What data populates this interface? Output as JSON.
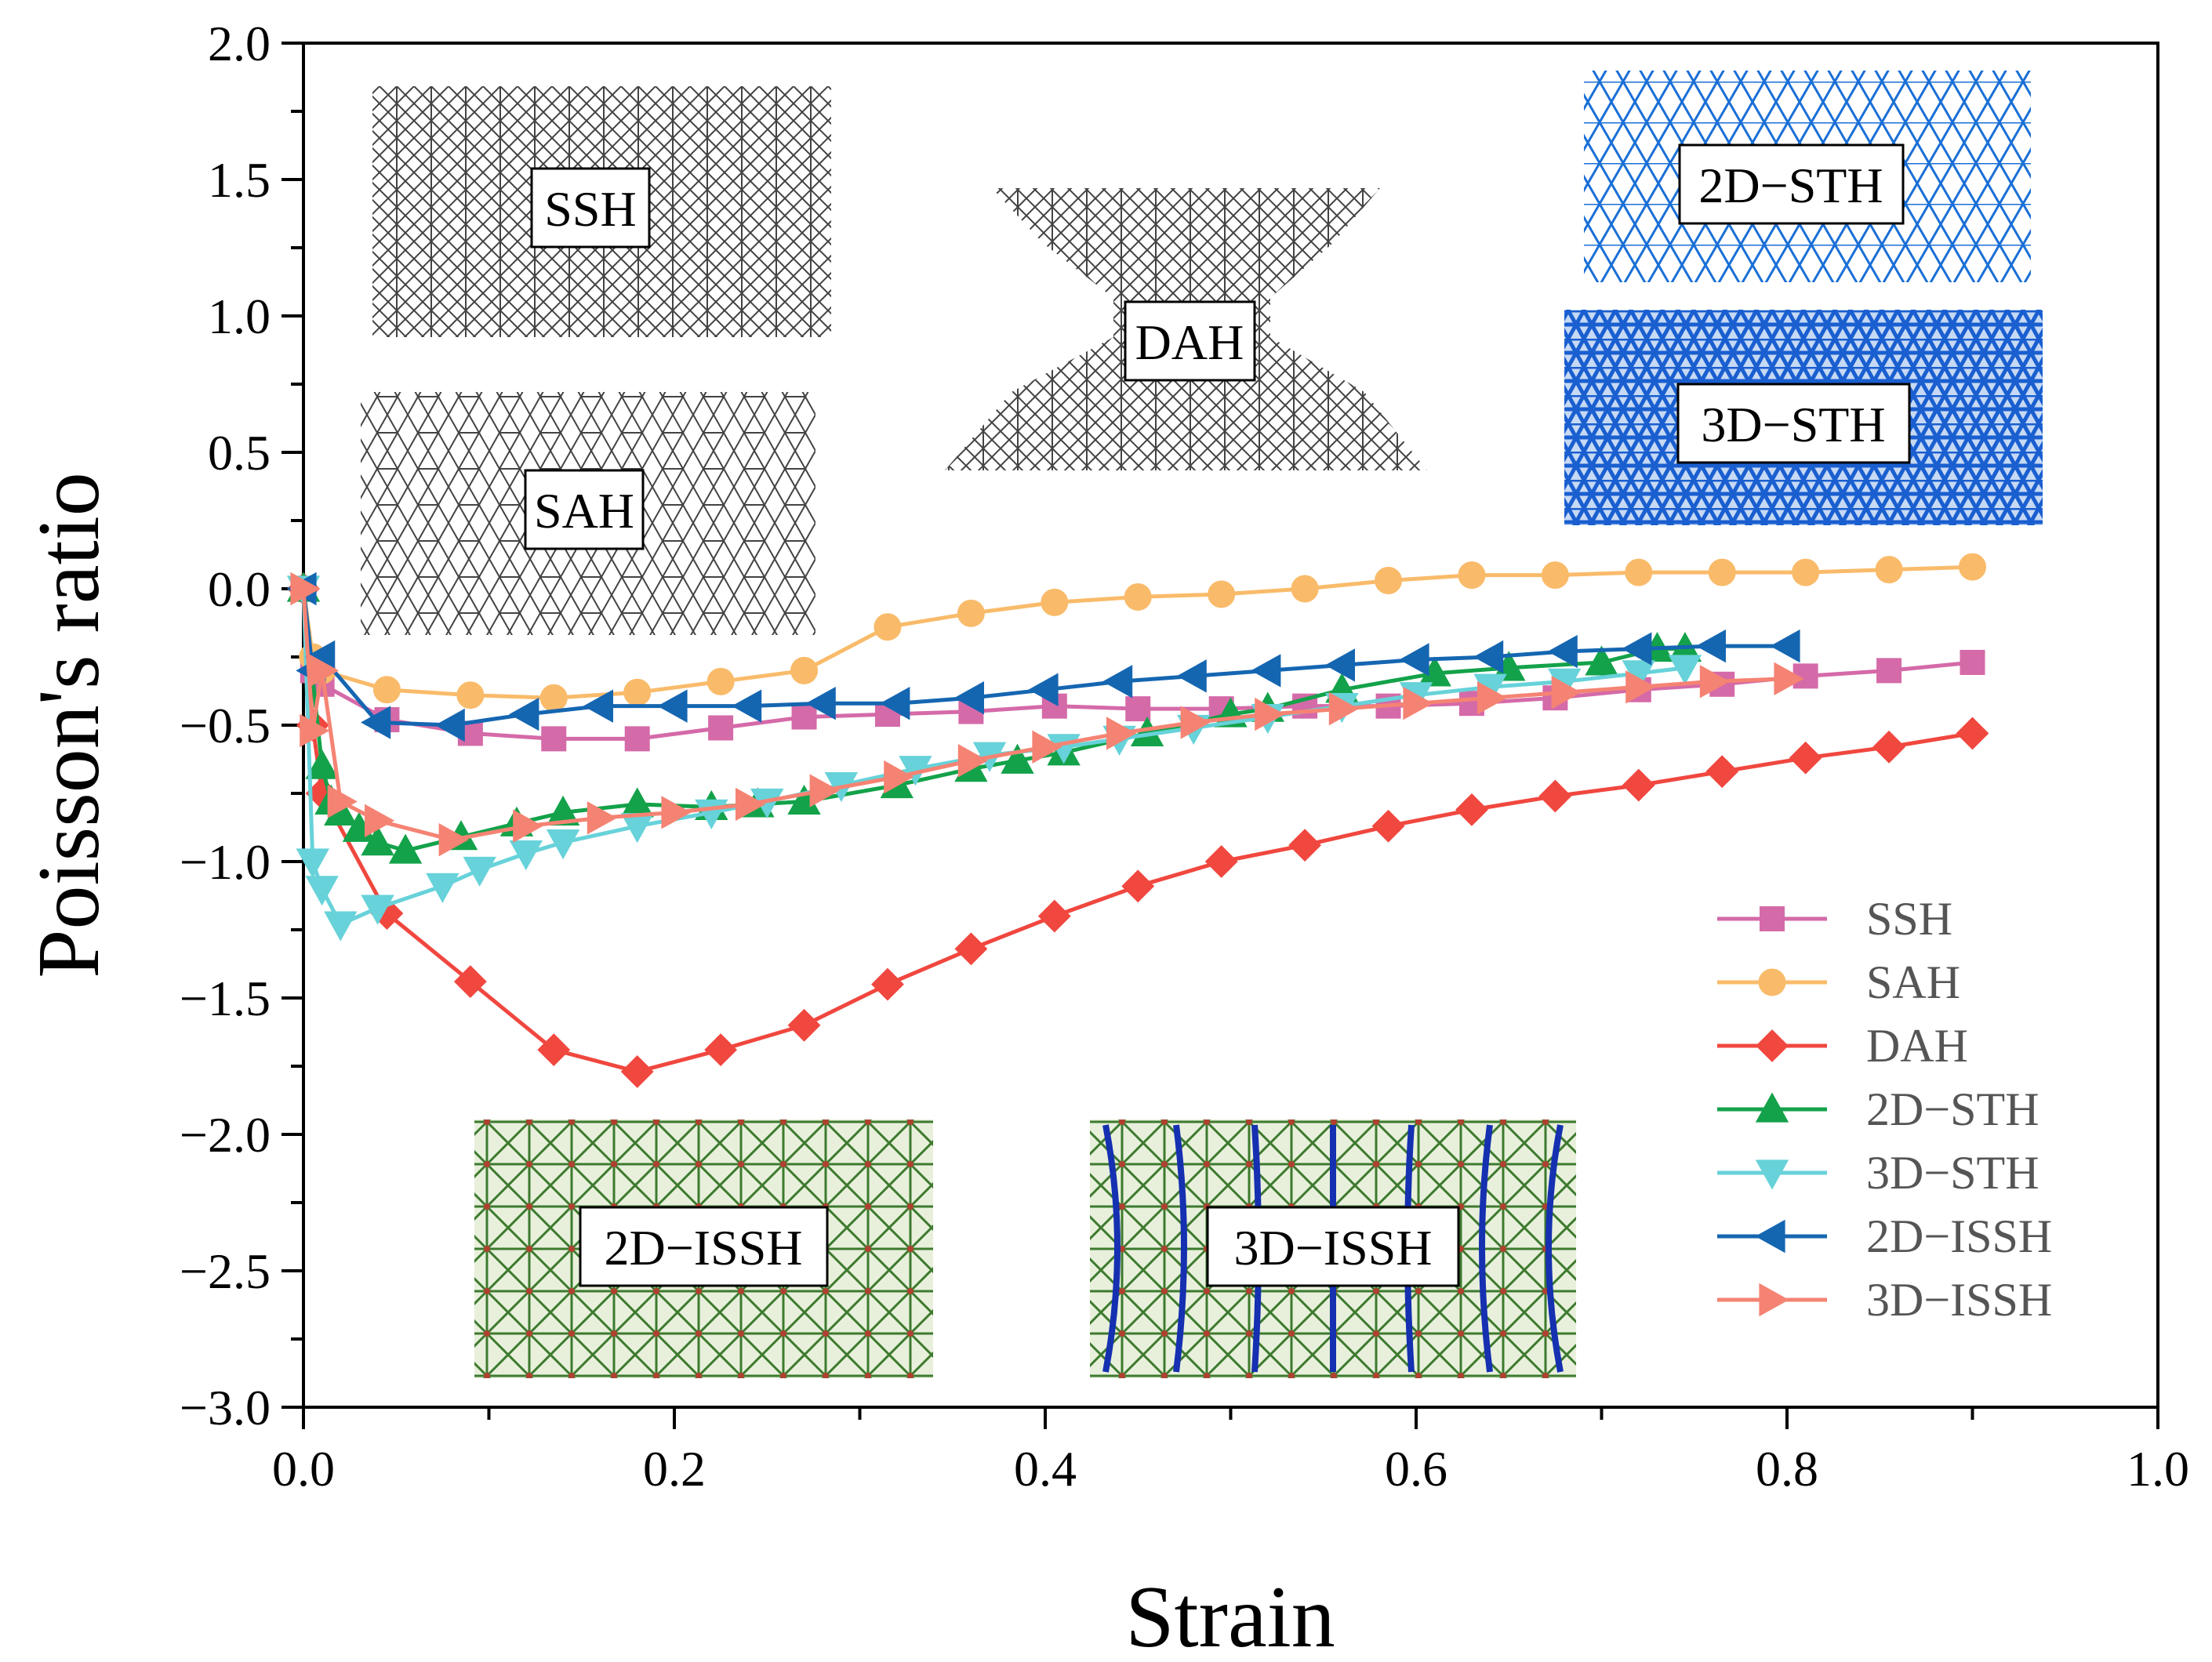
{
  "chart_data": {
    "type": "line",
    "xlabel": "Strain",
    "ylabel": "Poisson's ratio",
    "xlim": [
      0.0,
      1.0
    ],
    "ylim": [
      -3.0,
      2.0
    ],
    "xticks": [
      "0.0",
      "0.2",
      "0.4",
      "0.6",
      "0.8",
      "1.0"
    ],
    "yticks": [
      "2.0",
      "1.5",
      "1.0",
      "0.5",
      "0.0",
      "-0.5",
      "-1.0",
      "-1.5",
      "-2.0",
      "-2.5",
      "-3.0"
    ],
    "legend_position": "bottom-right",
    "series": [
      {
        "name": "SSH",
        "color": "#d56aa8",
        "marker": "square",
        "x": [
          0.0,
          0.005,
          0.01,
          0.045,
          0.09,
          0.135,
          0.18,
          0.225,
          0.27,
          0.315,
          0.36,
          0.405,
          0.45,
          0.495,
          0.54,
          0.585,
          0.63,
          0.675,
          0.72,
          0.765,
          0.81,
          0.855,
          0.9
        ],
        "y": [
          0.0,
          -0.3,
          -0.35,
          -0.48,
          -0.53,
          -0.55,
          -0.55,
          -0.51,
          -0.47,
          -0.46,
          -0.45,
          -0.43,
          -0.44,
          -0.44,
          -0.43,
          -0.43,
          -0.42,
          -0.4,
          -0.37,
          -0.35,
          -0.32,
          -0.3,
          -0.27
        ]
      },
      {
        "name": "SAH",
        "color": "#f9bb6a",
        "marker": "circle",
        "x": [
          0.0,
          0.005,
          0.01,
          0.045,
          0.09,
          0.135,
          0.18,
          0.225,
          0.27,
          0.315,
          0.36,
          0.405,
          0.45,
          0.495,
          0.54,
          0.585,
          0.63,
          0.675,
          0.72,
          0.765,
          0.81,
          0.855,
          0.9
        ],
        "y": [
          0.0,
          -0.25,
          -0.3,
          -0.37,
          -0.39,
          -0.4,
          -0.38,
          -0.34,
          -0.3,
          -0.14,
          -0.09,
          -0.05,
          -0.03,
          -0.02,
          0.0,
          0.03,
          0.05,
          0.05,
          0.06,
          0.06,
          0.06,
          0.07,
          0.08
        ]
      },
      {
        "name": "DAH",
        "color": "#f0473f",
        "marker": "diamond",
        "x": [
          0.0,
          0.005,
          0.01,
          0.045,
          0.09,
          0.135,
          0.18,
          0.225,
          0.27,
          0.315,
          0.36,
          0.405,
          0.45,
          0.495,
          0.54,
          0.585,
          0.63,
          0.675,
          0.72,
          0.765,
          0.81,
          0.855,
          0.9
        ],
        "y": [
          0.0,
          -0.5,
          -0.75,
          -1.19,
          -1.44,
          -1.69,
          -1.77,
          -1.69,
          -1.6,
          -1.45,
          -1.32,
          -1.2,
          -1.09,
          -1.0,
          -0.94,
          -0.87,
          -0.81,
          -0.76,
          -0.72,
          -0.67,
          -0.62,
          -0.58,
          -0.53
        ]
      },
      {
        "name": "2D-STH",
        "color": "#13a24a",
        "marker": "triangle-up",
        "x": [
          0.0,
          0.01,
          0.015,
          0.02,
          0.03,
          0.04,
          0.055,
          0.085,
          0.115,
          0.14,
          0.18,
          0.22,
          0.245,
          0.27,
          0.32,
          0.36,
          0.385,
          0.41,
          0.455,
          0.5,
          0.52,
          0.56,
          0.61,
          0.65,
          0.7,
          0.73,
          0.745
        ],
        "y": [
          0.0,
          -0.65,
          -0.78,
          -0.82,
          -0.88,
          -0.93,
          -0.96,
          -0.91,
          -0.86,
          -0.82,
          -0.79,
          -0.8,
          -0.79,
          -0.78,
          -0.72,
          -0.66,
          -0.63,
          -0.6,
          -0.53,
          -0.46,
          -0.44,
          -0.37,
          -0.31,
          -0.29,
          -0.27,
          -0.22,
          -0.22
        ]
      },
      {
        "name": "3D-STH",
        "color": "#67d2d9",
        "marker": "triangle-down",
        "x": [
          0.0,
          0.005,
          0.01,
          0.02,
          0.04,
          0.075,
          0.095,
          0.12,
          0.14,
          0.18,
          0.22,
          0.25,
          0.29,
          0.33,
          0.37,
          0.41,
          0.44,
          0.48,
          0.52,
          0.56,
          0.6,
          0.64,
          0.68,
          0.72,
          0.745
        ],
        "y": [
          0.0,
          -1.0,
          -1.1,
          -1.23,
          -1.17,
          -1.09,
          -1.03,
          -0.97,
          -0.93,
          -0.87,
          -0.82,
          -0.78,
          -0.72,
          -0.66,
          -0.61,
          -0.58,
          -0.55,
          -0.51,
          -0.47,
          -0.43,
          -0.39,
          -0.36,
          -0.34,
          -0.31,
          -0.29
        ]
      },
      {
        "name": "2D-ISSH",
        "color": "#1566b1",
        "marker": "triangle-left",
        "x": [
          0.0,
          0.005,
          0.01,
          0.04,
          0.08,
          0.12,
          0.16,
          0.2,
          0.24,
          0.28,
          0.32,
          0.36,
          0.4,
          0.44,
          0.48,
          0.52,
          0.56,
          0.6,
          0.64,
          0.68,
          0.72,
          0.76,
          0.8
        ],
        "y": [
          0.0,
          -0.3,
          -0.25,
          -0.49,
          -0.5,
          -0.46,
          -0.43,
          -0.43,
          -0.43,
          -0.42,
          -0.42,
          -0.4,
          -0.37,
          -0.34,
          -0.32,
          -0.3,
          -0.28,
          -0.26,
          -0.25,
          -0.23,
          -0.22,
          -0.21,
          -0.21
        ]
      },
      {
        "name": "3D-ISSH",
        "color": "#f58373",
        "marker": "triangle-right",
        "x": [
          0.0,
          0.005,
          0.01,
          0.02,
          0.04,
          0.08,
          0.12,
          0.16,
          0.2,
          0.24,
          0.28,
          0.32,
          0.36,
          0.4,
          0.44,
          0.48,
          0.52,
          0.56,
          0.6,
          0.64,
          0.68,
          0.72,
          0.76,
          0.8
        ],
        "y": [
          0.0,
          -0.52,
          -0.3,
          -0.78,
          -0.85,
          -0.92,
          -0.87,
          -0.84,
          -0.82,
          -0.79,
          -0.74,
          -0.69,
          -0.63,
          -0.58,
          -0.53,
          -0.49,
          -0.46,
          -0.44,
          -0.42,
          -0.4,
          -0.38,
          -0.36,
          -0.34,
          -0.33
        ]
      }
    ]
  },
  "insets": {
    "ssh": "SSH",
    "sah": "SAH",
    "dah": "DAH",
    "sth2d": "2D−STH",
    "sth3d": "3D−STH",
    "issh2d": "2D−ISSH",
    "issh3d": "3D−ISSH"
  },
  "legend_labels": [
    "SSH",
    "SAH",
    "DAH",
    "2D−STH",
    "3D−STH",
    "2D−ISSH",
    "3D−ISSH"
  ]
}
